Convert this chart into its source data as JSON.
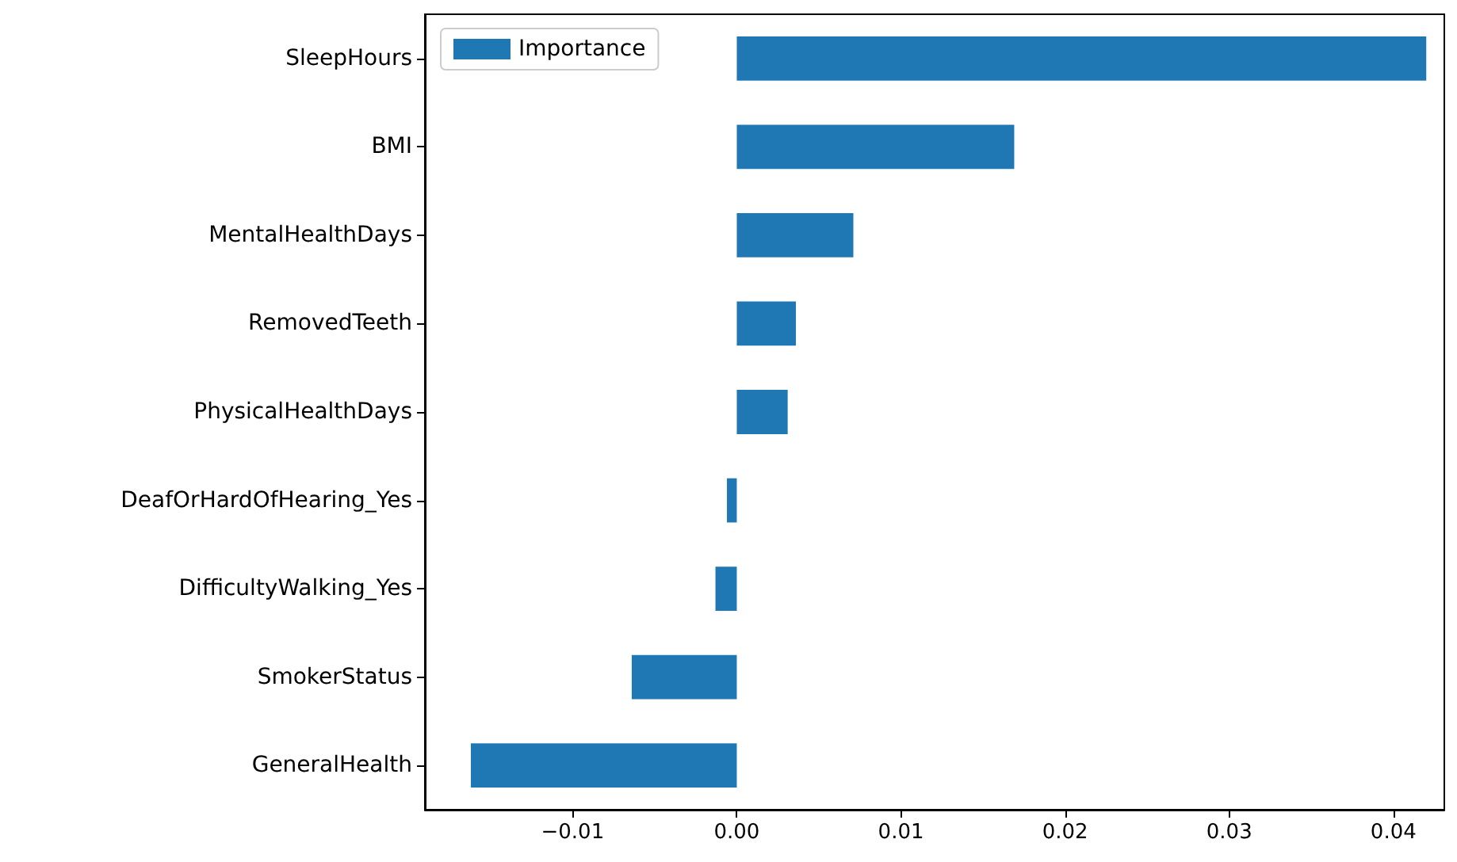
{
  "chart_data": {
    "type": "bar",
    "orientation": "horizontal",
    "categories": [
      "SleepHours",
      "BMI",
      "MentalHealthDays",
      "RemovedTeeth",
      "PhysicalHealthDays",
      "DeafOrHardOfHearing_Yes",
      "DifficultyWalking_Yes",
      "SmokerStatus",
      "GeneralHealth"
    ],
    "series": [
      {
        "name": "Importance",
        "color": "#1f77b4",
        "values": [
          0.042,
          0.0169,
          0.0071,
          0.0036,
          0.0031,
          -0.0006,
          -0.0013,
          -0.0064,
          -0.0162
        ]
      }
    ],
    "xlim": [
      -0.019,
      0.0431
    ],
    "xticks": [
      {
        "value": -0.01,
        "label": "−0.01"
      },
      {
        "value": 0,
        "label": "0.00"
      },
      {
        "value": 0.01,
        "label": "0.01"
      },
      {
        "value": 0.02,
        "label": "0.02"
      },
      {
        "value": 0.03,
        "label": "0.03"
      },
      {
        "value": 0.04,
        "label": "0.04"
      }
    ],
    "legend": "top left",
    "grid": false
  }
}
